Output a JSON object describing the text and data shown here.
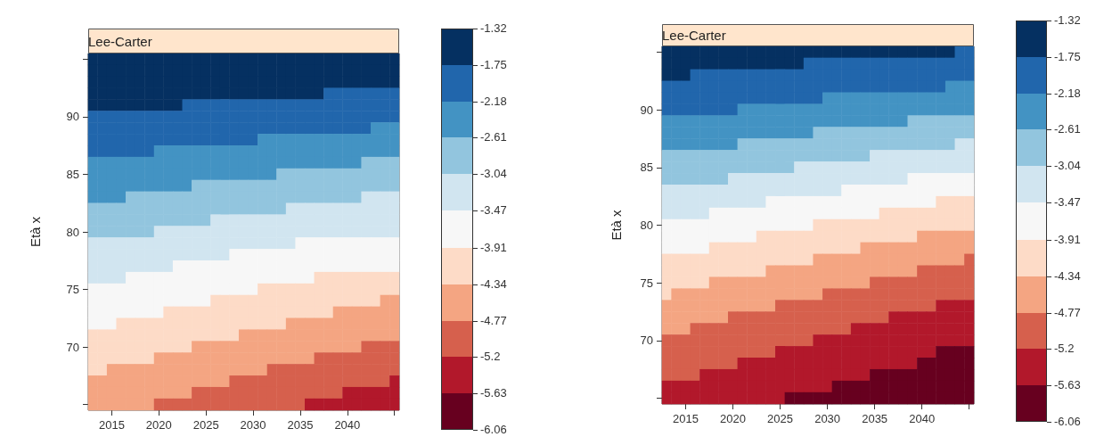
{
  "chart_data": [
    {
      "type": "heatmap",
      "title": "Lee-Carter",
      "ylabel": "Età x",
      "categories": [
        null,
        null,
        "2015",
        null,
        null,
        null,
        null,
        "2020",
        null,
        null,
        null,
        null,
        "2025",
        null,
        null,
        null,
        null,
        "2030",
        null,
        null,
        null,
        null,
        "2035",
        null,
        null,
        null,
        null,
        "2040",
        null,
        null,
        null,
        null,
        null
      ],
      "y_categories": [
        null,
        null,
        null,
        null,
        null,
        "90",
        null,
        null,
        null,
        null,
        "85",
        null,
        null,
        null,
        null,
        "80",
        null,
        null,
        null,
        null,
        "75",
        null,
        null,
        null,
        null,
        "70",
        null,
        null,
        null,
        null,
        null
      ],
      "clim": [
        -6.06,
        -1.32
      ],
      "cticks": [
        -6.06,
        -5.63,
        -5.2,
        -4.77,
        -4.34,
        -3.91,
        -3.47,
        -3.04,
        -2.61,
        -2.18,
        -1.75,
        -1.32
      ],
      "colors": [
        "#67001f",
        "#b2182b",
        "#d6604d",
        "#f4a582",
        "#fddbc7",
        "#f7f7f7",
        "#d1e5f0",
        "#92c5de",
        "#4393c3",
        "#2166ac",
        "#053061"
      ],
      "cells": [
        [
          -1.54,
          -1.54,
          -1.54,
          -1.54,
          -1.54,
          -1.54,
          -1.54,
          -1.54,
          -1.54,
          -1.54,
          -1.54,
          -1.54,
          -1.54,
          -1.54,
          -1.54,
          -1.54,
          -1.54,
          -1.54,
          -1.54,
          -1.54,
          -1.54,
          -1.54,
          -1.54,
          -1.54,
          -1.54,
          -1.54,
          -1.54,
          -1.54,
          -1.54,
          -1.54,
          -1.54,
          -1.54,
          -1.54
        ],
        [
          -1.54,
          -1.54,
          -1.54,
          -1.54,
          -1.54,
          -1.54,
          -1.54,
          -1.54,
          -1.54,
          -1.54,
          -1.54,
          -1.54,
          -1.54,
          -1.54,
          -1.54,
          -1.54,
          -1.54,
          -1.54,
          -1.54,
          -1.54,
          -1.54,
          -1.54,
          -1.54,
          -1.54,
          -1.54,
          -1.54,
          -1.54,
          -1.54,
          -1.54,
          -1.54,
          -1.54,
          -1.54,
          -1.54
        ],
        [
          -1.54,
          -1.54,
          -1.54,
          -1.54,
          -1.54,
          -1.54,
          -1.54,
          -1.54,
          -1.54,
          -1.54,
          -1.54,
          -1.54,
          -1.54,
          -1.54,
          -1.54,
          -1.54,
          -1.54,
          -1.54,
          -1.54,
          -1.54,
          -1.54,
          -1.54,
          -1.54,
          -1.54,
          -1.54,
          -1.54,
          -1.54,
          -1.54,
          -1.54,
          -1.54,
          -1.54,
          -1.54,
          -1.54
        ],
        [
          -1.54,
          -1.54,
          -1.54,
          -1.54,
          -1.54,
          -1.54,
          -1.54,
          -1.54,
          -1.54,
          -1.54,
          -1.54,
          -1.54,
          -1.54,
          -1.54,
          -1.54,
          -1.54,
          -1.54,
          -1.54,
          -1.54,
          -1.54,
          -1.54,
          -1.54,
          -1.54,
          -1.54,
          -1.54,
          -1.97,
          -1.97,
          -1.97,
          -1.97,
          -1.97,
          -1.97,
          -1.97,
          -1.97
        ],
        [
          -1.54,
          -1.54,
          -1.54,
          -1.54,
          -1.54,
          -1.54,
          -1.54,
          -1.54,
          -1.54,
          -1.54,
          -1.97,
          -1.97,
          -1.97,
          -1.97,
          -1.97,
          -1.97,
          -1.97,
          -1.97,
          -1.97,
          -1.97,
          -1.97,
          -1.97,
          -1.97,
          -1.97,
          -1.97,
          -1.97,
          -1.97,
          -1.97,
          -1.97,
          -1.97,
          -1.97,
          -1.97,
          -1.97
        ],
        [
          -1.97,
          -1.97,
          -1.97,
          -1.97,
          -1.97,
          -1.97,
          -1.97,
          -1.97,
          -1.97,
          -1.97,
          -1.97,
          -1.97,
          -1.97,
          -1.97,
          -1.97,
          -1.97,
          -1.97,
          -1.97,
          -1.97,
          -1.97,
          -1.97,
          -1.97,
          -1.97,
          -1.97,
          -1.97,
          -1.97,
          -1.97,
          -1.97,
          -1.97,
          -1.97,
          -1.97,
          -1.97,
          -1.97
        ],
        [
          -1.97,
          -1.97,
          -1.97,
          -1.97,
          -1.97,
          -1.97,
          -1.97,
          -1.97,
          -1.97,
          -1.97,
          -1.97,
          -1.97,
          -1.97,
          -1.97,
          -1.97,
          -1.97,
          -1.97,
          -1.97,
          -1.97,
          -1.97,
          -1.97,
          -1.97,
          -1.97,
          -1.97,
          -1.97,
          -1.97,
          -1.97,
          -1.97,
          -1.97,
          -1.97,
          -2.4,
          -2.4,
          -2.4
        ],
        [
          -1.97,
          -1.97,
          -1.97,
          -1.97,
          -1.97,
          -1.97,
          -1.97,
          -1.97,
          -1.97,
          -1.97,
          -1.97,
          -1.97,
          -1.97,
          -1.97,
          -1.97,
          -1.97,
          -1.97,
          -1.97,
          -2.4,
          -2.4,
          -2.4,
          -2.4,
          -2.4,
          -2.4,
          -2.4,
          -2.4,
          -2.4,
          -2.4,
          -2.4,
          -2.4,
          -2.4,
          -2.4,
          -2.4
        ],
        [
          -1.97,
          -1.97,
          -1.97,
          -1.97,
          -1.97,
          -1.97,
          -1.97,
          -2.4,
          -2.4,
          -2.4,
          -2.4,
          -2.4,
          -2.4,
          -2.4,
          -2.4,
          -2.4,
          -2.4,
          -2.4,
          -2.4,
          -2.4,
          -2.4,
          -2.4,
          -2.4,
          -2.4,
          -2.4,
          -2.4,
          -2.4,
          -2.4,
          -2.4,
          -2.4,
          -2.4,
          -2.4,
          -2.4
        ],
        [
          -2.4,
          -2.4,
          -2.4,
          -2.4,
          -2.4,
          -2.4,
          -2.4,
          -2.4,
          -2.4,
          -2.4,
          -2.4,
          -2.4,
          -2.4,
          -2.4,
          -2.4,
          -2.4,
          -2.4,
          -2.4,
          -2.4,
          -2.4,
          -2.4,
          -2.4,
          -2.4,
          -2.4,
          -2.4,
          -2.4,
          -2.4,
          -2.4,
          -2.4,
          -2.83,
          -2.83,
          -2.83,
          -2.83
        ],
        [
          -2.4,
          -2.4,
          -2.4,
          -2.4,
          -2.4,
          -2.4,
          -2.4,
          -2.4,
          -2.4,
          -2.4,
          -2.4,
          -2.4,
          -2.4,
          -2.4,
          -2.4,
          -2.4,
          -2.4,
          -2.4,
          -2.4,
          -2.4,
          -2.83,
          -2.83,
          -2.83,
          -2.83,
          -2.83,
          -2.83,
          -2.83,
          -2.83,
          -2.83,
          -2.83,
          -2.83,
          -2.83,
          -2.83
        ],
        [
          -2.4,
          -2.4,
          -2.4,
          -2.4,
          -2.4,
          -2.4,
          -2.4,
          -2.4,
          -2.4,
          -2.4,
          -2.4,
          -2.83,
          -2.83,
          -2.83,
          -2.83,
          -2.83,
          -2.83,
          -2.83,
          -2.83,
          -2.83,
          -2.83,
          -2.83,
          -2.83,
          -2.83,
          -2.83,
          -2.83,
          -2.83,
          -2.83,
          -2.83,
          -2.83,
          -2.83,
          -2.83,
          -2.83
        ],
        [
          -2.4,
          -2.4,
          -2.4,
          -2.4,
          -2.83,
          -2.83,
          -2.83,
          -2.83,
          -2.83,
          -2.83,
          -2.83,
          -2.83,
          -2.83,
          -2.83,
          -2.83,
          -2.83,
          -2.83,
          -2.83,
          -2.83,
          -2.83,
          -2.83,
          -2.83,
          -2.83,
          -2.83,
          -2.83,
          -2.83,
          -2.83,
          -2.83,
          -2.83,
          -3.26,
          -3.26,
          -3.26,
          -3.26
        ],
        [
          -2.83,
          -2.83,
          -2.83,
          -2.83,
          -2.83,
          -2.83,
          -2.83,
          -2.83,
          -2.83,
          -2.83,
          -2.83,
          -2.83,
          -2.83,
          -2.83,
          -2.83,
          -2.83,
          -2.83,
          -2.83,
          -2.83,
          -2.83,
          -2.83,
          -3.26,
          -3.26,
          -3.26,
          -3.26,
          -3.26,
          -3.26,
          -3.26,
          -3.26,
          -3.26,
          -3.26,
          -3.26,
          -3.26
        ],
        [
          -2.83,
          -2.83,
          -2.83,
          -2.83,
          -2.83,
          -2.83,
          -2.83,
          -2.83,
          -2.83,
          -2.83,
          -2.83,
          -2.83,
          -2.83,
          -3.26,
          -3.26,
          -3.26,
          -3.26,
          -3.26,
          -3.26,
          -3.26,
          -3.26,
          -3.26,
          -3.26,
          -3.26,
          -3.26,
          -3.26,
          -3.26,
          -3.26,
          -3.26,
          -3.26,
          -3.26,
          -3.26,
          -3.26
        ],
        [
          -2.83,
          -2.83,
          -2.83,
          -2.83,
          -2.83,
          -2.83,
          -2.83,
          -3.26,
          -3.26,
          -3.26,
          -3.26,
          -3.26,
          -3.26,
          -3.26,
          -3.26,
          -3.26,
          -3.26,
          -3.26,
          -3.26,
          -3.26,
          -3.26,
          -3.26,
          -3.26,
          -3.26,
          -3.26,
          -3.26,
          -3.26,
          -3.26,
          -3.26,
          -3.26,
          -3.26,
          -3.26,
          -3.26
        ],
        [
          -3.26,
          -3.26,
          -3.26,
          -3.26,
          -3.26,
          -3.26,
          -3.26,
          -3.26,
          -3.26,
          -3.26,
          -3.26,
          -3.26,
          -3.26,
          -3.26,
          -3.26,
          -3.26,
          -3.26,
          -3.26,
          -3.26,
          -3.26,
          -3.26,
          -3.26,
          -3.69,
          -3.69,
          -3.69,
          -3.69,
          -3.69,
          -3.69,
          -3.69,
          -3.69,
          -3.69,
          -3.69,
          -3.69
        ],
        [
          -3.26,
          -3.26,
          -3.26,
          -3.26,
          -3.26,
          -3.26,
          -3.26,
          -3.26,
          -3.26,
          -3.26,
          -3.26,
          -3.26,
          -3.26,
          -3.26,
          -3.26,
          -3.69,
          -3.69,
          -3.69,
          -3.69,
          -3.69,
          -3.69,
          -3.69,
          -3.69,
          -3.69,
          -3.69,
          -3.69,
          -3.69,
          -3.69,
          -3.69,
          -3.69,
          -3.69,
          -3.69,
          -3.69
        ],
        [
          -3.26,
          -3.26,
          -3.26,
          -3.26,
          -3.26,
          -3.26,
          -3.26,
          -3.26,
          -3.26,
          -3.69,
          -3.69,
          -3.69,
          -3.69,
          -3.69,
          -3.69,
          -3.69,
          -3.69,
          -3.69,
          -3.69,
          -3.69,
          -3.69,
          -3.69,
          -3.69,
          -3.69,
          -3.69,
          -3.69,
          -3.69,
          -3.69,
          -3.69,
          -3.69,
          -3.69,
          -3.69,
          -3.69
        ],
        [
          -3.26,
          -3.26,
          -3.26,
          -3.26,
          -3.69,
          -3.69,
          -3.69,
          -3.69,
          -3.69,
          -3.69,
          -3.69,
          -3.69,
          -3.69,
          -3.69,
          -3.69,
          -3.69,
          -3.69,
          -3.69,
          -3.69,
          -3.69,
          -3.69,
          -3.69,
          -3.69,
          -3.69,
          -4.13,
          -4.13,
          -4.13,
          -4.13,
          -4.13,
          -4.13,
          -4.13,
          -4.13,
          -4.13
        ],
        [
          -3.69,
          -3.69,
          -3.69,
          -3.69,
          -3.69,
          -3.69,
          -3.69,
          -3.69,
          -3.69,
          -3.69,
          -3.69,
          -3.69,
          -3.69,
          -3.69,
          -3.69,
          -3.69,
          -3.69,
          -3.69,
          -4.13,
          -4.13,
          -4.13,
          -4.13,
          -4.13,
          -4.13,
          -4.13,
          -4.13,
          -4.13,
          -4.13,
          -4.13,
          -4.13,
          -4.13,
          -4.13,
          -4.13
        ],
        [
          -3.69,
          -3.69,
          -3.69,
          -3.69,
          -3.69,
          -3.69,
          -3.69,
          -3.69,
          -3.69,
          -3.69,
          -3.69,
          -3.69,
          -3.69,
          -4.13,
          -4.13,
          -4.13,
          -4.13,
          -4.13,
          -4.13,
          -4.13,
          -4.13,
          -4.13,
          -4.13,
          -4.13,
          -4.13,
          -4.13,
          -4.13,
          -4.13,
          -4.13,
          -4.13,
          -4.13,
          -4.56,
          -4.56
        ],
        [
          -3.69,
          -3.69,
          -3.69,
          -3.69,
          -3.69,
          -3.69,
          -3.69,
          -3.69,
          -4.13,
          -4.13,
          -4.13,
          -4.13,
          -4.13,
          -4.13,
          -4.13,
          -4.13,
          -4.13,
          -4.13,
          -4.13,
          -4.13,
          -4.13,
          -4.13,
          -4.13,
          -4.13,
          -4.13,
          -4.13,
          -4.56,
          -4.56,
          -4.56,
          -4.56,
          -4.56,
          -4.56,
          -4.56
        ],
        [
          -3.69,
          -3.69,
          -3.69,
          -4.13,
          -4.13,
          -4.13,
          -4.13,
          -4.13,
          -4.13,
          -4.13,
          -4.13,
          -4.13,
          -4.13,
          -4.13,
          -4.13,
          -4.13,
          -4.13,
          -4.13,
          -4.13,
          -4.13,
          -4.13,
          -4.56,
          -4.56,
          -4.56,
          -4.56,
          -4.56,
          -4.56,
          -4.56,
          -4.56,
          -4.56,
          -4.56,
          -4.56,
          -4.56
        ],
        [
          -4.13,
          -4.13,
          -4.13,
          -4.13,
          -4.13,
          -4.13,
          -4.13,
          -4.13,
          -4.13,
          -4.13,
          -4.13,
          -4.13,
          -4.13,
          -4.13,
          -4.13,
          -4.13,
          -4.56,
          -4.56,
          -4.56,
          -4.56,
          -4.56,
          -4.56,
          -4.56,
          -4.56,
          -4.56,
          -4.56,
          -4.56,
          -4.56,
          -4.56,
          -4.56,
          -4.56,
          -4.56,
          -4.56
        ],
        [
          -4.13,
          -4.13,
          -4.13,
          -4.13,
          -4.13,
          -4.13,
          -4.13,
          -4.13,
          -4.13,
          -4.13,
          -4.13,
          -4.56,
          -4.56,
          -4.56,
          -4.56,
          -4.56,
          -4.56,
          -4.56,
          -4.56,
          -4.56,
          -4.56,
          -4.56,
          -4.56,
          -4.56,
          -4.56,
          -4.56,
          -4.56,
          -4.56,
          -4.56,
          -4.99,
          -4.99,
          -4.99,
          -4.99
        ],
        [
          -4.13,
          -4.13,
          -4.13,
          -4.13,
          -4.13,
          -4.13,
          -4.13,
          -4.56,
          -4.56,
          -4.56,
          -4.56,
          -4.56,
          -4.56,
          -4.56,
          -4.56,
          -4.56,
          -4.56,
          -4.56,
          -4.56,
          -4.56,
          -4.56,
          -4.56,
          -4.56,
          -4.56,
          -4.99,
          -4.99,
          -4.99,
          -4.99,
          -4.99,
          -4.99,
          -4.99,
          -4.99,
          -4.99
        ],
        [
          -4.13,
          -4.13,
          -4.56,
          -4.56,
          -4.56,
          -4.56,
          -4.56,
          -4.56,
          -4.56,
          -4.56,
          -4.56,
          -4.56,
          -4.56,
          -4.56,
          -4.56,
          -4.56,
          -4.56,
          -4.56,
          -4.56,
          -4.99,
          -4.99,
          -4.99,
          -4.99,
          -4.99,
          -4.99,
          -4.99,
          -4.99,
          -4.99,
          -4.99,
          -4.99,
          -4.99,
          -4.99,
          -4.99
        ],
        [
          -4.56,
          -4.56,
          -4.56,
          -4.56,
          -4.56,
          -4.56,
          -4.56,
          -4.56,
          -4.56,
          -4.56,
          -4.56,
          -4.56,
          -4.56,
          -4.56,
          -4.56,
          -4.99,
          -4.99,
          -4.99,
          -4.99,
          -4.99,
          -4.99,
          -4.99,
          -4.99,
          -4.99,
          -4.99,
          -4.99,
          -4.99,
          -4.99,
          -4.99,
          -4.99,
          -4.99,
          -4.99,
          -5.42
        ],
        [
          -4.56,
          -4.56,
          -4.56,
          -4.56,
          -4.56,
          -4.56,
          -4.56,
          -4.56,
          -4.56,
          -4.56,
          -4.56,
          -4.99,
          -4.99,
          -4.99,
          -4.99,
          -4.99,
          -4.99,
          -4.99,
          -4.99,
          -4.99,
          -4.99,
          -4.99,
          -4.99,
          -4.99,
          -4.99,
          -4.99,
          -4.99,
          -5.42,
          -5.42,
          -5.42,
          -5.42,
          -5.42,
          -5.42
        ],
        [
          -4.56,
          -4.56,
          -4.56,
          -4.56,
          -4.56,
          -4.56,
          -4.56,
          -4.99,
          -4.99,
          -4.99,
          -4.99,
          -4.99,
          -4.99,
          -4.99,
          -4.99,
          -4.99,
          -4.99,
          -4.99,
          -4.99,
          -4.99,
          -4.99,
          -4.99,
          -4.99,
          -5.42,
          -5.42,
          -5.42,
          -5.42,
          -5.42,
          -5.42,
          -5.42,
          -5.42,
          -5.42,
          -5.42
        ]
      ]
    },
    {
      "type": "heatmap",
      "title": "Lee-Carter",
      "ylabel": "Età x",
      "categories": [
        null,
        null,
        "2015",
        null,
        null,
        null,
        null,
        "2020",
        null,
        null,
        null,
        null,
        "2025",
        null,
        null,
        null,
        null,
        "2030",
        null,
        null,
        null,
        null,
        "2035",
        null,
        null,
        null,
        null,
        "2040",
        null,
        null,
        null,
        null,
        null
      ],
      "y_categories": [
        null,
        null,
        null,
        null,
        null,
        "90",
        null,
        null,
        null,
        null,
        "85",
        null,
        null,
        null,
        null,
        "80",
        null,
        null,
        null,
        null,
        "75",
        null,
        null,
        null,
        null,
        "70",
        null,
        null,
        null,
        null,
        null
      ],
      "clim": [
        -6.06,
        -1.32
      ],
      "cticks": [
        -6.06,
        -5.63,
        -5.2,
        -4.77,
        -4.34,
        -3.91,
        -3.47,
        -3.04,
        -2.61,
        -2.18,
        -1.75,
        -1.32
      ],
      "colors": [
        "#67001f",
        "#b2182b",
        "#d6604d",
        "#f4a582",
        "#fddbc7",
        "#f7f7f7",
        "#d1e5f0",
        "#92c5de",
        "#4393c3",
        "#2166ac",
        "#053061"
      ],
      "cells": [
        [
          -1.54,
          -1.54,
          -1.54,
          -1.54,
          -1.54,
          -1.54,
          -1.54,
          -1.54,
          -1.54,
          -1.54,
          -1.54,
          -1.54,
          -1.54,
          -1.54,
          -1.54,
          -1.54,
          -1.54,
          -1.54,
          -1.54,
          -1.54,
          -1.54,
          -1.54,
          -1.54,
          -1.54,
          -1.54,
          -1.54,
          -1.54,
          -1.54,
          -1.54,
          -1.54,
          -1.54,
          -1.97,
          -1.97
        ],
        [
          -1.54,
          -1.54,
          -1.54,
          -1.54,
          -1.54,
          -1.54,
          -1.54,
          -1.54,
          -1.54,
          -1.54,
          -1.54,
          -1.54,
          -1.54,
          -1.54,
          -1.54,
          -1.97,
          -1.97,
          -1.97,
          -1.97,
          -1.97,
          -1.97,
          -1.97,
          -1.97,
          -1.97,
          -1.97,
          -1.97,
          -1.97,
          -1.97,
          -1.97,
          -1.97,
          -1.97,
          -1.97,
          -1.97
        ],
        [
          -1.54,
          -1.54,
          -1.54,
          -1.97,
          -1.97,
          -1.97,
          -1.97,
          -1.97,
          -1.97,
          -1.97,
          -1.97,
          -1.97,
          -1.97,
          -1.97,
          -1.97,
          -1.97,
          -1.97,
          -1.97,
          -1.97,
          -1.97,
          -1.97,
          -1.97,
          -1.97,
          -1.97,
          -1.97,
          -1.97,
          -1.97,
          -1.97,
          -1.97,
          -1.97,
          -1.97,
          -1.97,
          -1.97
        ],
        [
          -1.97,
          -1.97,
          -1.97,
          -1.97,
          -1.97,
          -1.97,
          -1.97,
          -1.97,
          -1.97,
          -1.97,
          -1.97,
          -1.97,
          -1.97,
          -1.97,
          -1.97,
          -1.97,
          -1.97,
          -1.97,
          -1.97,
          -1.97,
          -1.97,
          -1.97,
          -1.97,
          -1.97,
          -1.97,
          -1.97,
          -1.97,
          -1.97,
          -1.97,
          -1.97,
          -2.4,
          -2.4,
          -2.4
        ],
        [
          -1.97,
          -1.97,
          -1.97,
          -1.97,
          -1.97,
          -1.97,
          -1.97,
          -1.97,
          -1.97,
          -1.97,
          -1.97,
          -1.97,
          -1.97,
          -1.97,
          -1.97,
          -1.97,
          -1.97,
          -2.4,
          -2.4,
          -2.4,
          -2.4,
          -2.4,
          -2.4,
          -2.4,
          -2.4,
          -2.4,
          -2.4,
          -2.4,
          -2.4,
          -2.4,
          -2.4,
          -2.4,
          -2.4
        ],
        [
          -1.97,
          -1.97,
          -1.97,
          -1.97,
          -1.97,
          -1.97,
          -1.97,
          -1.97,
          -2.4,
          -2.4,
          -2.4,
          -2.4,
          -2.4,
          -2.4,
          -2.4,
          -2.4,
          -2.4,
          -2.4,
          -2.4,
          -2.4,
          -2.4,
          -2.4,
          -2.4,
          -2.4,
          -2.4,
          -2.4,
          -2.4,
          -2.4,
          -2.4,
          -2.4,
          -2.4,
          -2.4,
          -2.4
        ],
        [
          -2.4,
          -2.4,
          -2.4,
          -2.4,
          -2.4,
          -2.4,
          -2.4,
          -2.4,
          -2.4,
          -2.4,
          -2.4,
          -2.4,
          -2.4,
          -2.4,
          -2.4,
          -2.4,
          -2.4,
          -2.4,
          -2.4,
          -2.4,
          -2.4,
          -2.4,
          -2.4,
          -2.4,
          -2.4,
          -2.4,
          -2.83,
          -2.83,
          -2.83,
          -2.83,
          -2.83,
          -2.83,
          -2.83
        ],
        [
          -2.4,
          -2.4,
          -2.4,
          -2.4,
          -2.4,
          -2.4,
          -2.4,
          -2.4,
          -2.4,
          -2.4,
          -2.4,
          -2.4,
          -2.4,
          -2.4,
          -2.4,
          -2.4,
          -2.83,
          -2.83,
          -2.83,
          -2.83,
          -2.83,
          -2.83,
          -2.83,
          -2.83,
          -2.83,
          -2.83,
          -2.83,
          -2.83,
          -2.83,
          -2.83,
          -2.83,
          -2.83,
          -2.83
        ],
        [
          -2.4,
          -2.4,
          -2.4,
          -2.4,
          -2.4,
          -2.4,
          -2.4,
          -2.4,
          -2.83,
          -2.83,
          -2.83,
          -2.83,
          -2.83,
          -2.83,
          -2.83,
          -2.83,
          -2.83,
          -2.83,
          -2.83,
          -2.83,
          -2.83,
          -2.83,
          -2.83,
          -2.83,
          -2.83,
          -2.83,
          -2.83,
          -2.83,
          -2.83,
          -2.83,
          -2.83,
          -3.26,
          -3.26
        ],
        [
          -2.83,
          -2.83,
          -2.83,
          -2.83,
          -2.83,
          -2.83,
          -2.83,
          -2.83,
          -2.83,
          -2.83,
          -2.83,
          -2.83,
          -2.83,
          -2.83,
          -2.83,
          -2.83,
          -2.83,
          -2.83,
          -2.83,
          -2.83,
          -2.83,
          -2.83,
          -3.26,
          -3.26,
          -3.26,
          -3.26,
          -3.26,
          -3.26,
          -3.26,
          -3.26,
          -3.26,
          -3.26,
          -3.26
        ],
        [
          -2.83,
          -2.83,
          -2.83,
          -2.83,
          -2.83,
          -2.83,
          -2.83,
          -2.83,
          -2.83,
          -2.83,
          -2.83,
          -2.83,
          -2.83,
          -2.83,
          -3.26,
          -3.26,
          -3.26,
          -3.26,
          -3.26,
          -3.26,
          -3.26,
          -3.26,
          -3.26,
          -3.26,
          -3.26,
          -3.26,
          -3.26,
          -3.26,
          -3.26,
          -3.26,
          -3.26,
          -3.26,
          -3.26
        ],
        [
          -2.83,
          -2.83,
          -2.83,
          -2.83,
          -2.83,
          -2.83,
          -2.83,
          -3.26,
          -3.26,
          -3.26,
          -3.26,
          -3.26,
          -3.26,
          -3.26,
          -3.26,
          -3.26,
          -3.26,
          -3.26,
          -3.26,
          -3.26,
          -3.26,
          -3.26,
          -3.26,
          -3.26,
          -3.26,
          -3.26,
          -3.69,
          -3.69,
          -3.69,
          -3.69,
          -3.69,
          -3.69,
          -3.69
        ],
        [
          -3.26,
          -3.26,
          -3.26,
          -3.26,
          -3.26,
          -3.26,
          -3.26,
          -3.26,
          -3.26,
          -3.26,
          -3.26,
          -3.26,
          -3.26,
          -3.26,
          -3.26,
          -3.26,
          -3.26,
          -3.26,
          -3.26,
          -3.69,
          -3.69,
          -3.69,
          -3.69,
          -3.69,
          -3.69,
          -3.69,
          -3.69,
          -3.69,
          -3.69,
          -3.69,
          -3.69,
          -3.69,
          -3.69
        ],
        [
          -3.26,
          -3.26,
          -3.26,
          -3.26,
          -3.26,
          -3.26,
          -3.26,
          -3.26,
          -3.26,
          -3.26,
          -3.26,
          -3.69,
          -3.69,
          -3.69,
          -3.69,
          -3.69,
          -3.69,
          -3.69,
          -3.69,
          -3.69,
          -3.69,
          -3.69,
          -3.69,
          -3.69,
          -3.69,
          -3.69,
          -3.69,
          -3.69,
          -3.69,
          -4.13,
          -4.13,
          -4.13,
          -4.13
        ],
        [
          -3.26,
          -3.26,
          -3.26,
          -3.26,
          -3.26,
          -3.69,
          -3.69,
          -3.69,
          -3.69,
          -3.69,
          -3.69,
          -3.69,
          -3.69,
          -3.69,
          -3.69,
          -3.69,
          -3.69,
          -3.69,
          -3.69,
          -3.69,
          -3.69,
          -3.69,
          -3.69,
          -4.13,
          -4.13,
          -4.13,
          -4.13,
          -4.13,
          -4.13,
          -4.13,
          -4.13,
          -4.13,
          -4.13
        ],
        [
          -3.69,
          -3.69,
          -3.69,
          -3.69,
          -3.69,
          -3.69,
          -3.69,
          -3.69,
          -3.69,
          -3.69,
          -3.69,
          -3.69,
          -3.69,
          -3.69,
          -3.69,
          -3.69,
          -4.13,
          -4.13,
          -4.13,
          -4.13,
          -4.13,
          -4.13,
          -4.13,
          -4.13,
          -4.13,
          -4.13,
          -4.13,
          -4.13,
          -4.13,
          -4.13,
          -4.13,
          -4.13,
          -4.13
        ],
        [
          -3.69,
          -3.69,
          -3.69,
          -3.69,
          -3.69,
          -3.69,
          -3.69,
          -3.69,
          -3.69,
          -3.69,
          -4.13,
          -4.13,
          -4.13,
          -4.13,
          -4.13,
          -4.13,
          -4.13,
          -4.13,
          -4.13,
          -4.13,
          -4.13,
          -4.13,
          -4.13,
          -4.13,
          -4.13,
          -4.13,
          -4.13,
          -4.56,
          -4.56,
          -4.56,
          -4.56,
          -4.56,
          -4.56
        ],
        [
          -3.69,
          -3.69,
          -3.69,
          -3.69,
          -3.69,
          -4.13,
          -4.13,
          -4.13,
          -4.13,
          -4.13,
          -4.13,
          -4.13,
          -4.13,
          -4.13,
          -4.13,
          -4.13,
          -4.13,
          -4.13,
          -4.13,
          -4.13,
          -4.13,
          -4.56,
          -4.56,
          -4.56,
          -4.56,
          -4.56,
          -4.56,
          -4.56,
          -4.56,
          -4.56,
          -4.56,
          -4.56,
          -4.56
        ],
        [
          -4.13,
          -4.13,
          -4.13,
          -4.13,
          -4.13,
          -4.13,
          -4.13,
          -4.13,
          -4.13,
          -4.13,
          -4.13,
          -4.13,
          -4.13,
          -4.13,
          -4.13,
          -4.13,
          -4.56,
          -4.56,
          -4.56,
          -4.56,
          -4.56,
          -4.56,
          -4.56,
          -4.56,
          -4.56,
          -4.56,
          -4.56,
          -4.56,
          -4.56,
          -4.56,
          -4.56,
          -4.56,
          -4.99
        ],
        [
          -4.13,
          -4.13,
          -4.13,
          -4.13,
          -4.13,
          -4.13,
          -4.13,
          -4.13,
          -4.13,
          -4.13,
          -4.13,
          -4.56,
          -4.56,
          -4.56,
          -4.56,
          -4.56,
          -4.56,
          -4.56,
          -4.56,
          -4.56,
          -4.56,
          -4.56,
          -4.56,
          -4.56,
          -4.56,
          -4.56,
          -4.56,
          -4.99,
          -4.99,
          -4.99,
          -4.99,
          -4.99,
          -4.99
        ],
        [
          -4.13,
          -4.13,
          -4.13,
          -4.13,
          -4.13,
          -4.56,
          -4.56,
          -4.56,
          -4.56,
          -4.56,
          -4.56,
          -4.56,
          -4.56,
          -4.56,
          -4.56,
          -4.56,
          -4.56,
          -4.56,
          -4.56,
          -4.56,
          -4.56,
          -4.56,
          -4.99,
          -4.99,
          -4.99,
          -4.99,
          -4.99,
          -4.99,
          -4.99,
          -4.99,
          -4.99,
          -4.99,
          -4.99
        ],
        [
          -4.13,
          -4.56,
          -4.56,
          -4.56,
          -4.56,
          -4.56,
          -4.56,
          -4.56,
          -4.56,
          -4.56,
          -4.56,
          -4.56,
          -4.56,
          -4.56,
          -4.56,
          -4.56,
          -4.56,
          -4.99,
          -4.99,
          -4.99,
          -4.99,
          -4.99,
          -4.99,
          -4.99,
          -4.99,
          -4.99,
          -4.99,
          -4.99,
          -4.99,
          -4.99,
          -4.99,
          -4.99,
          -4.99
        ],
        [
          -4.56,
          -4.56,
          -4.56,
          -4.56,
          -4.56,
          -4.56,
          -4.56,
          -4.56,
          -4.56,
          -4.56,
          -4.56,
          -4.56,
          -4.99,
          -4.99,
          -4.99,
          -4.99,
          -4.99,
          -4.99,
          -4.99,
          -4.99,
          -4.99,
          -4.99,
          -4.99,
          -4.99,
          -4.99,
          -4.99,
          -4.99,
          -4.99,
          -4.99,
          -5.42,
          -5.42,
          -5.42,
          -5.42
        ],
        [
          -4.56,
          -4.56,
          -4.56,
          -4.56,
          -4.56,
          -4.56,
          -4.56,
          -4.99,
          -4.99,
          -4.99,
          -4.99,
          -4.99,
          -4.99,
          -4.99,
          -4.99,
          -4.99,
          -4.99,
          -4.99,
          -4.99,
          -4.99,
          -4.99,
          -4.99,
          -4.99,
          -4.99,
          -5.42,
          -5.42,
          -5.42,
          -5.42,
          -5.42,
          -5.42,
          -5.42,
          -5.42,
          -5.42
        ],
        [
          -4.56,
          -4.56,
          -4.56,
          -4.99,
          -4.99,
          -4.99,
          -4.99,
          -4.99,
          -4.99,
          -4.99,
          -4.99,
          -4.99,
          -4.99,
          -4.99,
          -4.99,
          -4.99,
          -4.99,
          -4.99,
          -4.99,
          -4.99,
          -5.42,
          -5.42,
          -5.42,
          -5.42,
          -5.42,
          -5.42,
          -5.42,
          -5.42,
          -5.42,
          -5.42,
          -5.42,
          -5.42,
          -5.42
        ],
        [
          -4.99,
          -4.99,
          -4.99,
          -4.99,
          -4.99,
          -4.99,
          -4.99,
          -4.99,
          -4.99,
          -4.99,
          -4.99,
          -4.99,
          -4.99,
          -4.99,
          -4.99,
          -4.99,
          -5.42,
          -5.42,
          -5.42,
          -5.42,
          -5.42,
          -5.42,
          -5.42,
          -5.42,
          -5.42,
          -5.42,
          -5.42,
          -5.42,
          -5.42,
          -5.42,
          -5.42,
          -5.42,
          -5.42
        ],
        [
          -4.99,
          -4.99,
          -4.99,
          -4.99,
          -4.99,
          -4.99,
          -4.99,
          -4.99,
          -4.99,
          -4.99,
          -4.99,
          -4.99,
          -5.42,
          -5.42,
          -5.42,
          -5.42,
          -5.42,
          -5.42,
          -5.42,
          -5.42,
          -5.42,
          -5.42,
          -5.42,
          -5.42,
          -5.42,
          -5.42,
          -5.42,
          -5.42,
          -5.42,
          -5.85,
          -5.85,
          -5.85,
          -5.85
        ],
        [
          -4.99,
          -4.99,
          -4.99,
          -4.99,
          -4.99,
          -4.99,
          -4.99,
          -4.99,
          -5.42,
          -5.42,
          -5.42,
          -5.42,
          -5.42,
          -5.42,
          -5.42,
          -5.42,
          -5.42,
          -5.42,
          -5.42,
          -5.42,
          -5.42,
          -5.42,
          -5.42,
          -5.42,
          -5.42,
          -5.42,
          -5.42,
          -5.85,
          -5.85,
          -5.85,
          -5.85,
          -5.85,
          -5.85
        ],
        [
          -4.99,
          -4.99,
          -4.99,
          -4.99,
          -5.42,
          -5.42,
          -5.42,
          -5.42,
          -5.42,
          -5.42,
          -5.42,
          -5.42,
          -5.42,
          -5.42,
          -5.42,
          -5.42,
          -5.42,
          -5.42,
          -5.42,
          -5.42,
          -5.42,
          -5.42,
          -5.85,
          -5.85,
          -5.85,
          -5.85,
          -5.85,
          -5.85,
          -5.85,
          -5.85,
          -5.85,
          -5.85,
          -5.85
        ],
        [
          -5.42,
          -5.42,
          -5.42,
          -5.42,
          -5.42,
          -5.42,
          -5.42,
          -5.42,
          -5.42,
          -5.42,
          -5.42,
          -5.42,
          -5.42,
          -5.42,
          -5.42,
          -5.42,
          -5.42,
          -5.42,
          -5.85,
          -5.85,
          -5.85,
          -5.85,
          -5.85,
          -5.85,
          -5.85,
          -5.85,
          -5.85,
          -5.85,
          -5.85,
          -5.85,
          -5.85,
          -5.85,
          -5.85
        ],
        [
          -5.42,
          -5.42,
          -5.42,
          -5.42,
          -5.42,
          -5.42,
          -5.42,
          -5.42,
          -5.42,
          -5.42,
          -5.42,
          -5.42,
          -5.42,
          -5.85,
          -5.85,
          -5.85,
          -5.85,
          -5.85,
          -5.85,
          -5.85,
          -5.85,
          -5.85,
          -5.85,
          -5.85,
          -5.85,
          -5.85,
          -5.85,
          -5.85,
          -5.85,
          -5.85,
          -5.85,
          -5.85,
          -5.85
        ]
      ]
    }
  ]
}
